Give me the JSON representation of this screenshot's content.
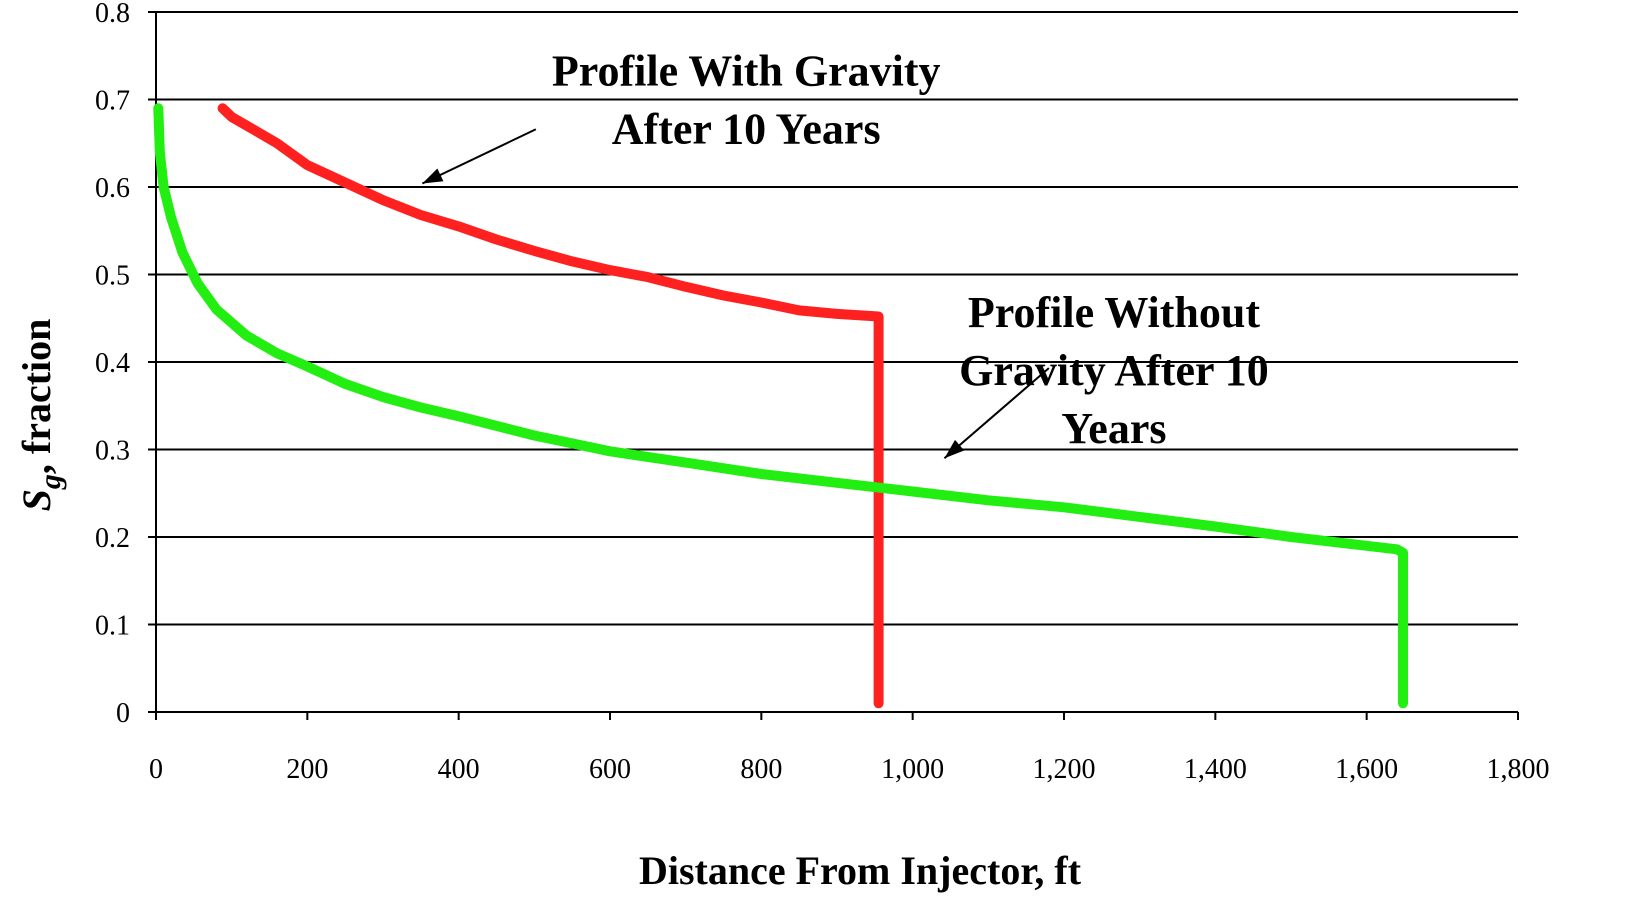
{
  "chart_data": {
    "type": "line",
    "title": "",
    "xlabel": "Distance From Injector, ft",
    "ylabel_main": "S",
    "ylabel_sub": "g",
    "ylabel_rest": ", fraction",
    "xlim": [
      0,
      1800
    ],
    "ylim": [
      0,
      0.8
    ],
    "grid": "horizontal",
    "x_ticks": [
      0,
      200,
      400,
      600,
      800,
      1000,
      1200,
      1400,
      1600,
      1800
    ],
    "x_tick_labels": [
      "0",
      "200",
      "400",
      "600",
      "800",
      "1,000",
      "1,200",
      "1,400",
      "1,600",
      "1,800"
    ],
    "y_ticks": [
      0,
      0.1,
      0.2,
      0.3,
      0.4,
      0.5,
      0.6,
      0.7,
      0.8
    ],
    "y_tick_labels": [
      "0",
      "0.1",
      "0.2",
      "0.3",
      "0.4",
      "0.5",
      "0.6",
      "0.7",
      "0.8"
    ],
    "series": [
      {
        "color": "#ff2020",
        "points": [
          [
            88,
            0.69
          ],
          [
            100,
            0.68
          ],
          [
            130,
            0.665
          ],
          [
            160,
            0.65
          ],
          [
            200,
            0.625
          ],
          [
            250,
            0.605
          ],
          [
            300,
            0.585
          ],
          [
            350,
            0.568
          ],
          [
            400,
            0.555
          ],
          [
            450,
            0.54
          ],
          [
            500,
            0.527
          ],
          [
            550,
            0.515
          ],
          [
            600,
            0.505
          ],
          [
            650,
            0.497
          ],
          [
            700,
            0.486
          ],
          [
            750,
            0.476
          ],
          [
            800,
            0.468
          ],
          [
            850,
            0.459
          ],
          [
            900,
            0.455
          ],
          [
            955,
            0.452
          ],
          [
            955,
            0.01
          ]
        ]
      },
      {
        "color": "#22ee11",
        "points": [
          [
            3,
            0.69
          ],
          [
            5,
            0.64
          ],
          [
            10,
            0.6
          ],
          [
            20,
            0.565
          ],
          [
            35,
            0.525
          ],
          [
            55,
            0.49
          ],
          [
            80,
            0.46
          ],
          [
            120,
            0.43
          ],
          [
            160,
            0.41
          ],
          [
            200,
            0.395
          ],
          [
            250,
            0.375
          ],
          [
            300,
            0.36
          ],
          [
            350,
            0.348
          ],
          [
            400,
            0.338
          ],
          [
            450,
            0.327
          ],
          [
            500,
            0.316
          ],
          [
            550,
            0.307
          ],
          [
            600,
            0.298
          ],
          [
            700,
            0.285
          ],
          [
            800,
            0.272
          ],
          [
            900,
            0.262
          ],
          [
            1000,
            0.252
          ],
          [
            1100,
            0.242
          ],
          [
            1200,
            0.234
          ],
          [
            1300,
            0.223
          ],
          [
            1400,
            0.212
          ],
          [
            1500,
            0.2
          ],
          [
            1600,
            0.19
          ],
          [
            1640,
            0.186
          ],
          [
            1648,
            0.182
          ],
          [
            1648,
            0.01
          ]
        ]
      }
    ],
    "annotations": [
      {
        "lines": [
          "Profile With Gravity",
          "After 10 Years"
        ],
        "text_anchor": [
          780,
          0.716
        ],
        "arrow_from": [
          502,
          0.666
        ],
        "arrow_to": [
          352,
          0.604
        ]
      },
      {
        "lines": [
          "Profile Without",
          "Gravity After 10",
          "Years"
        ],
        "text_anchor": [
          1266,
          0.44
        ],
        "arrow_from": [
          1180,
          0.393
        ],
        "arrow_to": [
          1042,
          0.29
        ]
      }
    ]
  }
}
